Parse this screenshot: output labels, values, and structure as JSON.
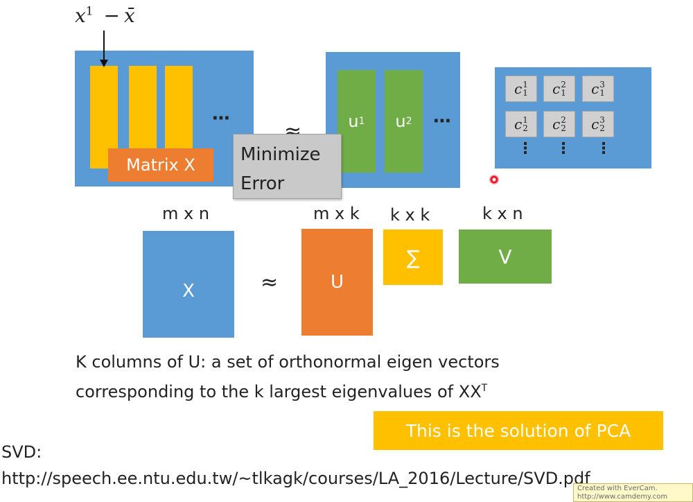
{
  "top": {
    "x_label": "x¹ − x̄",
    "x_label_base": "x",
    "x_label_sup": "1",
    "x_label_minus": "−",
    "x_label_xbar": "x̄",
    "matrix_x_label": "Matrix X",
    "ellipsis": "⋯",
    "approx": "≈",
    "minimize_error_line1": "Minimize",
    "minimize_error_line2": "Error",
    "u1_base": "u",
    "u1_sup": "1",
    "u2_base": "u",
    "u2_sup": "2",
    "coeffs": [
      {
        "base": "c",
        "sup": "1",
        "sub": "1"
      },
      {
        "base": "c",
        "sup": "2",
        "sub": "1"
      },
      {
        "base": "c",
        "sup": "3",
        "sub": "1"
      },
      {
        "base": "c",
        "sup": "1",
        "sub": "2"
      },
      {
        "base": "c",
        "sup": "2",
        "sub": "2"
      },
      {
        "base": "c",
        "sup": "3",
        "sub": "2"
      }
    ],
    "vdots": "⋮"
  },
  "svd": {
    "dim_x": "m x n",
    "dim_u": "m x k",
    "dim_sigma": "k x k",
    "dim_v": "k x n",
    "x_label": "X",
    "approx": "≈",
    "u_label": "U",
    "sigma_label": "∑",
    "v_label": "V"
  },
  "caption": {
    "line1": "K columns of U: a set of orthonormal eigen vectors",
    "line2": "corresponding to the k largest eigenvalues of XX",
    "line2_sup": "T"
  },
  "solution_box": "This is the solution of PCA",
  "svd_label": "SVD:",
  "url": "http://speech.ee.ntu.edu.tw/~tlkagk/courses/LA_2016/Lecture/SVD.pdf",
  "watermark_line1": "Created with EverCam.",
  "watermark_line2": "http://www.camdemy.com",
  "colors": {
    "blue": "#5b9bd5",
    "orange": "#ed7d31",
    "yellow": "#ffc000",
    "green": "#70ad47",
    "gray": "#c9c9c9",
    "laser": "#e8192c"
  }
}
